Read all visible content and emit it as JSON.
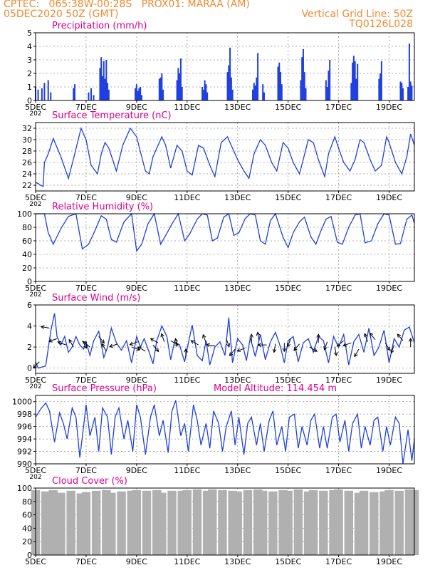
{
  "header": {
    "line1_left": "CPTEC:   065:38W-00:28S   PROX01: MARAA (AM)",
    "line2_left": "05DEC2020 50Z (GMT)",
    "line2_right": "Vertical Grid Line: 50Z",
    "line3_right": "TQ0126L028"
  },
  "colors": {
    "header": "#f08a30",
    "title": "#e0008c",
    "series": "#1f3fe0",
    "cloud": "#b0b0b0"
  },
  "x_axis": {
    "tick_labels": [
      "5DEC",
      "7DEC",
      "9DEC",
      "11DEC",
      "13DEC",
      "15DEC",
      "17DEC",
      "19DEC"
    ],
    "tick_days": [
      5,
      7,
      9,
      11,
      13,
      15,
      17,
      19
    ],
    "range": [
      5,
      20
    ],
    "year_stub": "202"
  },
  "chart_data": [
    {
      "type": "bar",
      "title": "Precipitation (mm/h)",
      "ylim": [
        0,
        5
      ],
      "y_ticks": [
        0,
        1,
        2,
        3,
        4,
        5
      ],
      "x_days": [
        5.0,
        5.1,
        5.25,
        5.35,
        5.5,
        5.6,
        6.5,
        6.55,
        7.1,
        7.2,
        7.3,
        7.55,
        7.6,
        7.65,
        7.7,
        7.75,
        7.8,
        7.85,
        7.9,
        8.95,
        9.0,
        9.05,
        9.1,
        9.15,
        9.2,
        9.9,
        9.95,
        10.0,
        10.05,
        10.6,
        10.65,
        10.7,
        10.75,
        10.8,
        11.6,
        11.65,
        11.7,
        11.75,
        11.8,
        12.6,
        12.65,
        12.7,
        12.75,
        12.8,
        13.6,
        13.65,
        13.7,
        13.75,
        13.8,
        14.0,
        14.05,
        14.6,
        14.65,
        14.7,
        14.75,
        15.5,
        15.55,
        15.6,
        15.65,
        15.7,
        16.5,
        16.55,
        16.6,
        16.65,
        17.5,
        17.55,
        17.6,
        17.65,
        17.7,
        17.75,
        18.6,
        18.65,
        18.7,
        19.45,
        19.5,
        19.55,
        19.75,
        19.8,
        19.85,
        19.9
      ],
      "values": [
        1.0,
        0.8,
        0.9,
        1.3,
        1.5,
        0.6,
        0.9,
        1.2,
        0.6,
        0.9,
        0.4,
        2.4,
        3.2,
        1.8,
        2.9,
        1.6,
        3.0,
        1.3,
        0.8,
        0.9,
        1.2,
        0.7,
        0.9,
        1.0,
        0.4,
        1.6,
        1.7,
        2.0,
        0.8,
        1.5,
        2.4,
        2.0,
        3.1,
        1.0,
        1.0,
        0.8,
        1.5,
        1.2,
        0.6,
        2.1,
        2.6,
        3.9,
        1.7,
        0.8,
        0.8,
        1.3,
        1.1,
        1.7,
        3.5,
        1.2,
        0.6,
        2.5,
        2.8,
        2.1,
        1.2,
        1.5,
        3.2,
        3.8,
        2.1,
        0.9,
        1.5,
        1.0,
        2.2,
        3.0,
        1.3,
        2.8,
        3.3,
        2.9,
        1.6,
        2.7,
        1.6,
        2.0,
        2.9,
        1.4,
        1.3,
        0.9,
        1.0,
        4.2,
        1.4,
        1.1
      ]
    },
    {
      "type": "line",
      "title": "Surface Temperature (nC)",
      "ylim": [
        21,
        33
      ],
      "y_ticks": [
        22,
        24,
        26,
        28,
        30,
        32
      ],
      "x_days": [
        5.0,
        5.1,
        5.2,
        5.3,
        5.35,
        5.5,
        5.7,
        6.0,
        6.3,
        6.55,
        6.8,
        7.0,
        7.2,
        7.45,
        7.6,
        7.75,
        7.9,
        8.2,
        8.45,
        8.75,
        9.0,
        9.2,
        9.35,
        9.5,
        9.65,
        10.0,
        10.15,
        10.35,
        10.6,
        10.8,
        11.0,
        11.2,
        11.45,
        11.65,
        11.9,
        12.1,
        12.35,
        12.6,
        12.8,
        13.0,
        13.25,
        13.45,
        13.65,
        13.9,
        14.1,
        14.35,
        14.55,
        14.8,
        15.0,
        15.2,
        15.45,
        15.6,
        15.8,
        16.0,
        16.2,
        16.45,
        16.6,
        16.85,
        17.0,
        17.2,
        17.45,
        17.65,
        17.85,
        18.0,
        18.25,
        18.45,
        18.7,
        18.9,
        19.0,
        19.25,
        19.5,
        19.7,
        19.85,
        20.0
      ],
      "values": [
        22.5,
        22.3,
        22.0,
        21.8,
        26.0,
        27.5,
        30.2,
        27.0,
        23.2,
        27.5,
        32.0,
        30.0,
        25.5,
        24.0,
        27.5,
        29.5,
        28.5,
        24.5,
        29.0,
        32.0,
        30.5,
        27.0,
        24.5,
        24.0,
        27.0,
        30.5,
        29.0,
        25.0,
        29.0,
        28.0,
        24.5,
        23.8,
        29.0,
        28.5,
        25.5,
        23.5,
        29.5,
        30.5,
        28.5,
        26.5,
        24.5,
        23.2,
        27.5,
        30.0,
        29.0,
        26.0,
        24.5,
        29.5,
        28.5,
        26.0,
        24.0,
        26.5,
        30.0,
        29.5,
        26.5,
        23.5,
        27.5,
        30.5,
        28.5,
        26.0,
        24.5,
        26.5,
        30.0,
        29.5,
        26.5,
        24.5,
        25.5,
        30.5,
        29.5,
        26.0,
        24.0,
        27.0,
        31.0,
        29.0
      ]
    },
    {
      "type": "line",
      "title": "Relative Humidity (%)",
      "ylim": [
        0,
        100
      ],
      "y_ticks": [
        0,
        20,
        40,
        60,
        80,
        100
      ],
      "x_days": [
        5.0,
        5.2,
        5.35,
        5.5,
        5.7,
        6.0,
        6.3,
        6.6,
        6.85,
        7.1,
        7.35,
        7.6,
        7.8,
        8.0,
        8.2,
        8.5,
        8.8,
        9.0,
        9.2,
        9.45,
        9.7,
        9.95,
        10.15,
        10.4,
        10.65,
        10.9,
        11.1,
        11.4,
        11.6,
        11.8,
        12.0,
        12.2,
        12.45,
        12.65,
        12.85,
        13.05,
        13.3,
        13.5,
        13.7,
        13.9,
        14.1,
        14.3,
        14.5,
        14.8,
        15.0,
        15.2,
        15.45,
        15.65,
        15.9,
        16.1,
        16.3,
        16.5,
        16.7,
        16.95,
        17.15,
        17.4,
        17.65,
        17.85,
        18.05,
        18.3,
        18.55,
        18.8,
        19.0,
        19.25,
        19.45,
        19.7,
        19.9,
        20.0
      ],
      "values": [
        100,
        100,
        100,
        72,
        55,
        78,
        96,
        100,
        48,
        55,
        75,
        97,
        92,
        62,
        58,
        88,
        100,
        45,
        55,
        85,
        100,
        55,
        68,
        85,
        100,
        60,
        70,
        92,
        100,
        98,
        60,
        64,
        95,
        100,
        68,
        72,
        93,
        100,
        98,
        60,
        55,
        90,
        100,
        65,
        50,
        72,
        88,
        95,
        66,
        55,
        75,
        92,
        96,
        58,
        55,
        80,
        98,
        100,
        57,
        60,
        85,
        100,
        98,
        55,
        56,
        92,
        98,
        86
      ]
    },
    {
      "type": "line",
      "title": "Surface Wind (m/s)",
      "ylim": [
        -0.5,
        6
      ],
      "y_ticks": [
        0,
        2,
        4,
        6
      ],
      "x_days": [
        5.0,
        5.1,
        5.25,
        5.4,
        5.6,
        5.75,
        5.85,
        6.0,
        6.15,
        6.3,
        6.45,
        6.6,
        6.75,
        6.9,
        7.0,
        7.15,
        7.3,
        7.5,
        7.7,
        7.85,
        8.0,
        8.2,
        8.4,
        8.6,
        8.8,
        9.0,
        9.15,
        9.3,
        9.5,
        9.65,
        9.8,
        10.0,
        10.2,
        10.35,
        10.5,
        10.7,
        10.9,
        11.0,
        11.2,
        11.4,
        11.6,
        11.75,
        11.9,
        12.1,
        12.3,
        12.5,
        12.65,
        12.8,
        13.0,
        13.2,
        13.35,
        13.5,
        13.7,
        13.9,
        14.1,
        14.3,
        14.5,
        14.7,
        14.85,
        15.0,
        15.2,
        15.4,
        15.6,
        15.8,
        16.0,
        16.2,
        16.4,
        16.6,
        16.8,
        17.0,
        17.2,
        17.4,
        17.6,
        17.8,
        18.0,
        18.2,
        18.4,
        18.6,
        18.8,
        19.0,
        19.2,
        19.4,
        19.6,
        19.8,
        20.0
      ],
      "values": [
        0.6,
        0.0,
        0.1,
        0.2,
        3.5,
        5.2,
        3.0,
        2.2,
        3.0,
        1.5,
        2.0,
        3.0,
        2.2,
        1.8,
        2.5,
        1.2,
        2.6,
        3.5,
        1.0,
        2.0,
        3.8,
        2.4,
        1.7,
        2.6,
        0.5,
        3.0,
        2.0,
        2.8,
        1.5,
        0.4,
        2.6,
        4.0,
        3.0,
        0.8,
        2.5,
        2.2,
        0.6,
        1.8,
        4.1,
        1.2,
        0.7,
        2.6,
        0.3,
        2.0,
        2.5,
        1.2,
        4.8,
        0.5,
        2.8,
        2.2,
        0.7,
        2.9,
        1.1,
        3.2,
        0.8,
        2.5,
        3.4,
        2.0,
        0.5,
        2.6,
        3.0,
        0.6,
        2.4,
        2.8,
        1.5,
        3.0,
        2.6,
        0.5,
        3.0,
        2.0,
        3.2,
        0.3,
        2.5,
        3.2,
        1.5,
        3.8,
        1.2,
        2.0,
        3.6,
        0.5,
        2.8,
        2.0,
        3.6,
        3.9,
        2.4
      ]
    },
    {
      "type": "line",
      "title": "Surface Pressure (hPa)",
      "annotation": "Model Altitude: 114.454 m",
      "ylim": [
        990,
        1001
      ],
      "y_ticks": [
        990,
        992,
        994,
        996,
        998,
        1000
      ],
      "x_days": [
        5.0,
        5.2,
        5.4,
        5.55,
        5.75,
        5.95,
        6.1,
        6.25,
        6.45,
        6.6,
        6.75,
        6.9,
        7.0,
        7.15,
        7.35,
        7.5,
        7.65,
        7.85,
        8.0,
        8.15,
        8.3,
        8.5,
        8.65,
        8.85,
        9.0,
        9.15,
        9.35,
        9.55,
        9.7,
        9.9,
        10.05,
        10.25,
        10.4,
        10.55,
        10.75,
        10.9,
        11.05,
        11.25,
        11.4,
        11.55,
        11.75,
        11.9,
        12.05,
        12.25,
        12.4,
        12.55,
        12.75,
        12.9,
        13.05,
        13.25,
        13.4,
        13.55,
        13.75,
        13.9,
        14.05,
        14.25,
        14.4,
        14.55,
        14.75,
        14.9,
        15.05,
        15.25,
        15.4,
        15.55,
        15.75,
        15.9,
        16.05,
        16.25,
        16.4,
        16.55,
        16.75,
        16.9,
        17.05,
        17.25,
        17.4,
        17.55,
        17.75,
        17.9,
        18.05,
        18.25,
        18.4,
        18.55,
        18.75,
        18.9,
        19.05,
        19.25,
        19.4,
        19.55,
        19.75,
        19.9,
        20.0
      ],
      "values": [
        997.5,
        998.8,
        999.8,
        998.5,
        993.5,
        998.2,
        996.5,
        994.0,
        999.0,
        997.5,
        991.0,
        996.0,
        999.5,
        994.5,
        997.5,
        992.0,
        999.0,
        997.5,
        991.5,
        997.5,
        999.0,
        994.0,
        997.0,
        992.0,
        999.5,
        997.5,
        991.5,
        997.5,
        999.5,
        994.5,
        997.0,
        991.8,
        998.5,
        1000.2,
        994.5,
        996.5,
        992.0,
        999.5,
        997.0,
        993.0,
        996.5,
        992.5,
        998.5,
        996.5,
        992.0,
        996.0,
        998.5,
        993.0,
        997.5,
        991.5,
        996.5,
        997.5,
        993.0,
        996.5,
        992.0,
        997.0,
        998.5,
        993.0,
        996.0,
        992.0,
        997.5,
        998.0,
        992.5,
        996.0,
        993.0,
        997.0,
        998.0,
        992.5,
        996.0,
        992.5,
        997.5,
        998.0,
        993.5,
        997.0,
        992.0,
        996.5,
        998.0,
        992.5,
        996.0,
        993.0,
        997.0,
        997.5,
        992.0,
        996.0,
        993.0,
        997.5,
        996.5,
        990.0,
        995.5,
        990.5,
        994.0
      ]
    },
    {
      "type": "area",
      "title": "Cloud Cover (%)",
      "ylim": [
        0,
        100
      ],
      "y_ticks": [
        0,
        20,
        40,
        60,
        80,
        100
      ],
      "x_days": [
        5.0,
        5.4,
        5.7,
        6.0,
        6.4,
        6.8,
        7.0,
        7.4,
        7.8,
        8.0,
        8.4,
        8.8,
        9.0,
        9.4,
        9.8,
        10.0,
        10.4,
        10.8,
        11.0,
        11.4,
        11.8,
        12.0,
        12.4,
        12.8,
        13.0,
        13.4,
        13.8,
        14.0,
        14.4,
        14.8,
        15.0,
        15.4,
        15.8,
        16.0,
        16.4,
        16.8,
        17.0,
        17.4,
        17.8,
        18.0,
        18.4,
        18.8,
        19.0,
        19.4,
        19.8,
        20.0
      ],
      "values": [
        97,
        95,
        97,
        93,
        96,
        92,
        94,
        96,
        97,
        93,
        95,
        96,
        97,
        96,
        97,
        93,
        96,
        96,
        97,
        98,
        96,
        98,
        97,
        96,
        95,
        97,
        98,
        96,
        95,
        97,
        96,
        98,
        95,
        97,
        96,
        97,
        98,
        96,
        93,
        96,
        94,
        95,
        97,
        96,
        98,
        97
      ]
    }
  ],
  "wind_arrows": {
    "x_days": [
      5.15,
      5.55,
      5.85,
      6.2,
      6.5,
      6.85,
      7.15,
      7.5,
      7.8,
      8.25,
      8.8,
      9.05,
      9.35,
      9.65,
      9.85,
      10.1,
      10.35,
      10.6,
      10.95,
      11.45,
      11.75,
      12.1,
      12.55,
      12.9,
      13.3,
      13.55,
      13.85,
      14.15,
      14.5,
      14.85,
      15.1,
      15.45,
      15.85,
      16.2,
      16.55,
      16.85,
      17.2,
      17.5,
      17.8,
      18.15,
      18.45,
      18.85,
      19.2,
      19.55,
      19.85
    ],
    "speeds": [
      0.6,
      3.8,
      2.8,
      2.2,
      2.0,
      2.6,
      2.0,
      3.0,
      1.6,
      2.3,
      2.0,
      2.5,
      1.6,
      2.2,
      2.4,
      2.5,
      2.6,
      2.0,
      1.0,
      2.2,
      2.4,
      2.1,
      2.8,
      1.8,
      1.9,
      2.4,
      2.6,
      2.2,
      2.3,
      2.4,
      2.8,
      2.3,
      2.0,
      2.4,
      2.5,
      2.0,
      2.6,
      2.4,
      1.8,
      2.5,
      2.7,
      2.4,
      2.2,
      2.6,
      2.0
    ],
    "directions_deg": [
      225,
      170,
      200,
      160,
      120,
      300,
      140,
      310,
      120,
      200,
      340,
      200,
      150,
      310,
      150,
      110,
      330,
      100,
      90,
      150,
      110,
      170,
      290,
      230,
      200,
      90,
      100,
      180,
      260,
      270,
      250,
      230,
      330,
      90,
      250,
      280,
      220,
      200,
      240,
      110,
      130,
      300,
      250,
      130,
      90
    ]
  }
}
